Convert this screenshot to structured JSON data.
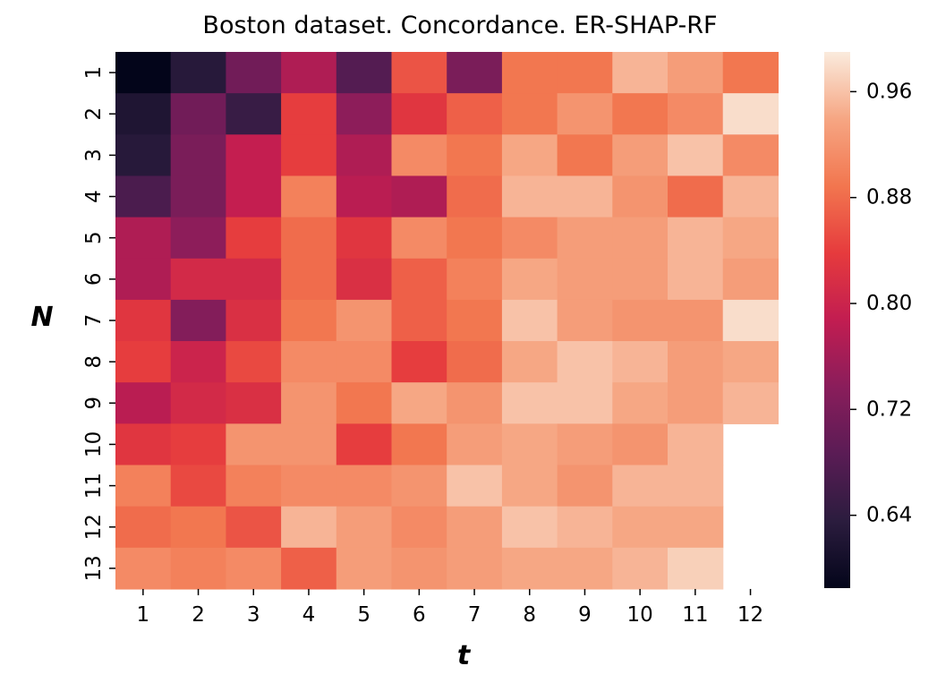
{
  "chart_data": {
    "type": "heatmap",
    "title": "Boston dataset. Concordance. ER-SHAP-RF",
    "xlabel": "t",
    "ylabel": "N",
    "x_categories": [
      "1",
      "2",
      "3",
      "4",
      "5",
      "6",
      "7",
      "8",
      "9",
      "10",
      "11",
      "12"
    ],
    "y_categories": [
      "1",
      "2",
      "3",
      "4",
      "5",
      "6",
      "7",
      "8",
      "9",
      "10",
      "11",
      "12",
      "13"
    ],
    "values": [
      [
        0.58,
        0.63,
        0.71,
        0.77,
        0.68,
        0.86,
        0.72,
        0.89,
        0.89,
        0.95,
        0.93,
        0.89
      ],
      [
        0.62,
        0.71,
        0.65,
        0.84,
        0.74,
        0.83,
        0.87,
        0.89,
        0.92,
        0.89,
        0.91,
        0.98
      ],
      [
        0.63,
        0.72,
        0.79,
        0.84,
        0.77,
        0.91,
        0.89,
        0.94,
        0.89,
        0.93,
        0.96,
        0.91
      ],
      [
        0.67,
        0.72,
        0.79,
        0.9,
        0.78,
        0.77,
        0.88,
        0.95,
        0.95,
        0.92,
        0.88,
        0.95
      ],
      [
        0.77,
        0.74,
        0.84,
        0.88,
        0.83,
        0.91,
        0.89,
        0.91,
        0.93,
        0.93,
        0.95,
        0.94
      ],
      [
        0.77,
        0.81,
        0.81,
        0.88,
        0.82,
        0.87,
        0.9,
        0.94,
        0.93,
        0.93,
        0.95,
        0.93
      ],
      [
        0.83,
        0.73,
        0.82,
        0.89,
        0.92,
        0.87,
        0.89,
        0.96,
        0.93,
        0.92,
        0.92,
        0.98
      ],
      [
        0.84,
        0.8,
        0.85,
        0.91,
        0.91,
        0.84,
        0.88,
        0.94,
        0.96,
        0.95,
        0.93,
        0.94
      ],
      [
        0.78,
        0.81,
        0.82,
        0.92,
        0.89,
        0.94,
        0.92,
        0.96,
        0.96,
        0.94,
        0.93,
        0.95
      ],
      [
        0.83,
        0.84,
        0.92,
        0.92,
        0.84,
        0.89,
        0.93,
        0.94,
        0.93,
        0.92,
        0.95,
        null
      ],
      [
        0.9,
        0.85,
        0.9,
        0.91,
        0.91,
        0.92,
        0.96,
        0.94,
        0.92,
        0.95,
        0.95,
        null
      ],
      [
        0.88,
        0.89,
        0.86,
        0.95,
        0.93,
        0.91,
        0.93,
        0.96,
        0.95,
        0.94,
        0.94,
        null
      ],
      [
        0.91,
        0.9,
        0.91,
        0.87,
        0.93,
        0.92,
        0.93,
        0.94,
        0.94,
        0.95,
        0.97,
        null
      ]
    ],
    "colorbar": {
      "ticks": [
        0.96,
        0.88,
        0.8,
        0.72,
        0.64
      ],
      "tick_labels": [
        "0.96",
        "0.88",
        "0.80",
        "0.72",
        "0.64"
      ],
      "range": [
        0.585,
        0.99
      ]
    },
    "colormap": "rocket",
    "grid": false,
    "legend": "colorbar-right"
  }
}
